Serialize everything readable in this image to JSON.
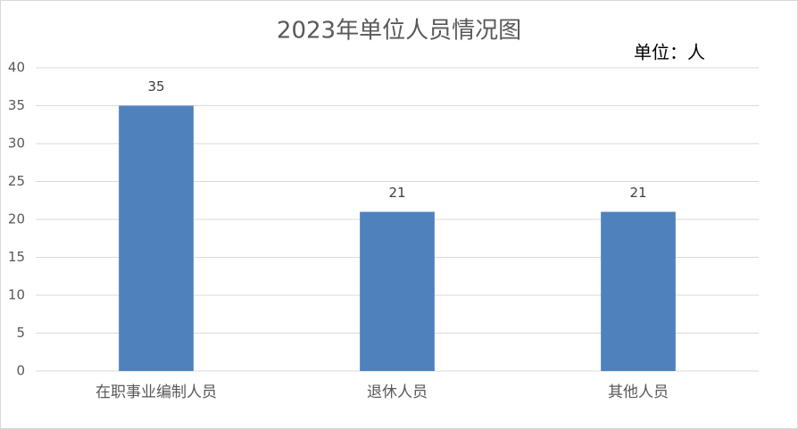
{
  "chart_data": {
    "type": "bar",
    "title": "2023年单位人员情况图",
    "annotation": "单位：人",
    "categories": [
      "在职事业编制人员",
      "退休人员",
      "其他人员"
    ],
    "values": [
      35,
      21,
      21
    ],
    "color": "#4f81bd",
    "ylim": [
      0,
      40
    ],
    "yticks": [
      0,
      5,
      10,
      15,
      20,
      25,
      30,
      35,
      40
    ],
    "grid": true
  }
}
